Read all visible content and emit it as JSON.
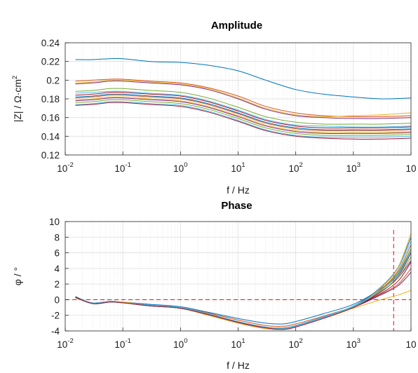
{
  "colors": {
    "series": [
      "#0072bd",
      "#d95319",
      "#edb120",
      "#7e2f8e",
      "#77ac30",
      "#4dbeee",
      "#a2142f",
      "#0072bd",
      "#d95319",
      "#edb120",
      "#7e2f8e",
      "#77ac30",
      "#4dbeee",
      "#a2142f"
    ],
    "reference_line": "#ff0000",
    "grid": "#dedede"
  },
  "chart_data": [
    {
      "type": "line",
      "title": "Amplitude",
      "xlabel": "f / Hz",
      "ylabel": "|Z| / Ω·cm",
      "ylabel_sup": "2",
      "xscale": "log",
      "xlim": [
        0.01,
        10000
      ],
      "ylim": [
        0.12,
        0.24
      ],
      "grid": true,
      "x_ticks": [
        {
          "base": "10",
          "exp": "-2"
        },
        {
          "base": "10",
          "exp": "-1"
        },
        {
          "base": "10",
          "exp": "0"
        },
        {
          "base": "10",
          "exp": "1"
        },
        {
          "base": "10",
          "exp": "2"
        },
        {
          "base": "10",
          "exp": "3"
        },
        {
          "base": "10",
          "exp": ""
        }
      ],
      "y_ticks": [
        "0.24",
        "0.22",
        "0.2",
        "0.18",
        "0.16",
        "0.14",
        "0.12"
      ],
      "y_tick_values": [
        0.24,
        0.22,
        0.2,
        0.18,
        0.16,
        0.14,
        0.12
      ],
      "x": [
        0.015,
        0.03,
        0.06,
        0.1,
        0.3,
        1,
        3,
        10,
        30,
        100,
        300,
        1000,
        3000,
        10000
      ],
      "series": [
        {
          "values": [
            0.222,
            0.222,
            0.223,
            0.223,
            0.22,
            0.219,
            0.216,
            0.21,
            0.2,
            0.19,
            0.185,
            0.182,
            0.18,
            0.181
          ]
        },
        {
          "values": [
            0.199,
            0.2,
            0.201,
            0.201,
            0.199,
            0.197,
            0.192,
            0.183,
            0.172,
            0.165,
            0.162,
            0.161,
            0.161,
            0.162
          ]
        },
        {
          "values": [
            0.197,
            0.198,
            0.2,
            0.2,
            0.198,
            0.196,
            0.191,
            0.181,
            0.17,
            0.163,
            0.161,
            0.162,
            0.163,
            0.165
          ]
        },
        {
          "values": [
            0.196,
            0.197,
            0.199,
            0.199,
            0.197,
            0.195,
            0.19,
            0.18,
            0.169,
            0.162,
            0.16,
            0.159,
            0.159,
            0.16
          ]
        },
        {
          "values": [
            0.188,
            0.189,
            0.191,
            0.191,
            0.189,
            0.187,
            0.181,
            0.171,
            0.161,
            0.155,
            0.153,
            0.153,
            0.153,
            0.154
          ]
        },
        {
          "values": [
            0.186,
            0.187,
            0.188,
            0.188,
            0.186,
            0.184,
            0.178,
            0.168,
            0.158,
            0.152,
            0.151,
            0.15,
            0.15,
            0.151
          ]
        },
        {
          "values": [
            0.184,
            0.185,
            0.187,
            0.187,
            0.185,
            0.183,
            0.177,
            0.167,
            0.157,
            0.151,
            0.149,
            0.149,
            0.149,
            0.15
          ]
        },
        {
          "values": [
            0.182,
            0.183,
            0.185,
            0.185,
            0.183,
            0.181,
            0.175,
            0.165,
            0.155,
            0.149,
            0.147,
            0.147,
            0.147,
            0.148
          ]
        },
        {
          "values": [
            0.181,
            0.182,
            0.184,
            0.184,
            0.182,
            0.18,
            0.174,
            0.164,
            0.154,
            0.148,
            0.146,
            0.146,
            0.146,
            0.147
          ]
        },
        {
          "values": [
            0.179,
            0.18,
            0.182,
            0.182,
            0.18,
            0.178,
            0.172,
            0.162,
            0.152,
            0.146,
            0.144,
            0.144,
            0.144,
            0.145
          ]
        },
        {
          "values": [
            0.178,
            0.179,
            0.181,
            0.181,
            0.179,
            0.177,
            0.171,
            0.161,
            0.151,
            0.145,
            0.143,
            0.143,
            0.143,
            0.144
          ]
        },
        {
          "values": [
            0.176,
            0.177,
            0.179,
            0.179,
            0.177,
            0.175,
            0.169,
            0.159,
            0.149,
            0.143,
            0.141,
            0.141,
            0.141,
            0.142
          ]
        },
        {
          "values": [
            0.174,
            0.175,
            0.177,
            0.177,
            0.175,
            0.173,
            0.167,
            0.157,
            0.147,
            0.141,
            0.139,
            0.139,
            0.139,
            0.14
          ]
        },
        {
          "values": [
            0.173,
            0.174,
            0.176,
            0.176,
            0.174,
            0.172,
            0.166,
            0.156,
            0.146,
            0.14,
            0.138,
            0.137,
            0.137,
            0.138
          ]
        }
      ]
    },
    {
      "type": "line",
      "title": "Phase",
      "xlabel": "f / Hz",
      "ylabel": "φ / °",
      "xscale": "log",
      "xlim": [
        0.01,
        10000
      ],
      "ylim": [
        -4,
        10
      ],
      "grid": true,
      "x_ticks": [
        {
          "base": "10",
          "exp": "-2"
        },
        {
          "base": "10",
          "exp": "-1"
        },
        {
          "base": "10",
          "exp": "0"
        },
        {
          "base": "10",
          "exp": "1"
        },
        {
          "base": "10",
          "exp": "2"
        },
        {
          "base": "10",
          "exp": "3"
        },
        {
          "base": "10",
          "exp": ""
        }
      ],
      "y_ticks": [
        "10",
        "8",
        "6",
        "4",
        "2",
        "0",
        "-2",
        "-4"
      ],
      "y_tick_values": [
        10,
        8,
        6,
        4,
        2,
        0,
        -2,
        -4
      ],
      "reference_lines": {
        "horizontal_y": 0,
        "vertical_x": 5000
      },
      "x": [
        0.015,
        0.03,
        0.06,
        0.1,
        0.3,
        1,
        3,
        10,
        30,
        60,
        100,
        300,
        1000,
        3000,
        6000,
        10000
      ],
      "series": [
        {
          "values": [
            0.3,
            -0.4,
            -0.2,
            -0.3,
            -0.6,
            -0.9,
            -1.6,
            -2.4,
            -3.0,
            -3.1,
            -2.8,
            -1.8,
            -0.6,
            1.4,
            3.3,
            6.5
          ]
        },
        {
          "values": [
            0.4,
            -0.5,
            -0.3,
            -0.4,
            -0.7,
            -1.0,
            -1.7,
            -2.6,
            -3.3,
            -3.4,
            -3.1,
            -2.1,
            -0.9,
            0.7,
            2.0,
            4.0
          ]
        },
        {
          "values": [
            0.2,
            -0.4,
            -0.2,
            -0.3,
            -0.7,
            -1.0,
            -1.8,
            -2.8,
            -3.5,
            -3.6,
            -3.3,
            -2.3,
            -1.1,
            0.0,
            0.6,
            1.2
          ]
        },
        {
          "values": [
            0.3,
            -0.5,
            -0.2,
            -0.4,
            -0.7,
            -1.1,
            -1.8,
            -2.8,
            -3.5,
            -3.6,
            -3.3,
            -2.2,
            -0.9,
            1.0,
            2.8,
            5.0
          ]
        },
        {
          "values": [
            0.3,
            -0.5,
            -0.3,
            -0.4,
            -0.8,
            -1.1,
            -1.9,
            -2.9,
            -3.6,
            -3.7,
            -3.4,
            -2.3,
            -0.9,
            1.2,
            3.5,
            6.5
          ]
        },
        {
          "values": [
            0.3,
            -0.4,
            -0.2,
            -0.4,
            -0.7,
            -1.0,
            -1.8,
            -2.8,
            -3.5,
            -3.6,
            -3.3,
            -2.2,
            -0.8,
            1.5,
            4.0,
            7.5
          ]
        },
        {
          "values": [
            0.3,
            -0.5,
            -0.3,
            -0.4,
            -0.8,
            -1.1,
            -1.9,
            -3.0,
            -3.7,
            -3.8,
            -3.5,
            -2.4,
            -1.0,
            1.0,
            3.0,
            6.0
          ]
        },
        {
          "values": [
            0.4,
            -0.5,
            -0.3,
            -0.4,
            -0.8,
            -1.1,
            -1.9,
            -2.9,
            -3.6,
            -3.7,
            -3.4,
            -2.3,
            -0.9,
            1.6,
            4.2,
            8.0
          ]
        },
        {
          "values": [
            0.3,
            -0.5,
            -0.3,
            -0.4,
            -0.8,
            -1.1,
            -1.9,
            -2.9,
            -3.6,
            -3.7,
            -3.4,
            -2.3,
            -0.9,
            1.3,
            3.7,
            7.0
          ]
        },
        {
          "values": [
            0.3,
            -0.5,
            -0.3,
            -0.4,
            -0.8,
            -1.1,
            -2.0,
            -3.0,
            -3.7,
            -3.8,
            -3.5,
            -2.4,
            -1.0,
            1.5,
            4.2,
            8.5
          ]
        },
        {
          "values": [
            0.3,
            -0.5,
            -0.3,
            -0.4,
            -0.8,
            -1.1,
            -1.9,
            -2.9,
            -3.6,
            -3.7,
            -3.4,
            -2.3,
            -1.0,
            0.6,
            1.8,
            3.5
          ]
        },
        {
          "values": [
            0.3,
            -0.5,
            -0.3,
            -0.4,
            -0.8,
            -1.1,
            -1.9,
            -2.9,
            -3.6,
            -3.7,
            -3.4,
            -2.3,
            -0.9,
            1.1,
            2.8,
            5.5
          ]
        },
        {
          "values": [
            0.3,
            -0.5,
            -0.3,
            -0.4,
            -0.8,
            -1.1,
            -1.9,
            -2.9,
            -3.6,
            -3.7,
            -3.4,
            -2.3,
            -0.9,
            1.2,
            3.2,
            6.2
          ]
        },
        {
          "values": [
            0.3,
            -0.5,
            -0.3,
            -0.4,
            -0.8,
            -1.1,
            -1.9,
            -2.9,
            -3.6,
            -3.8,
            -3.5,
            -2.4,
            -1.0,
            0.8,
            2.4,
            4.8
          ]
        }
      ]
    }
  ]
}
